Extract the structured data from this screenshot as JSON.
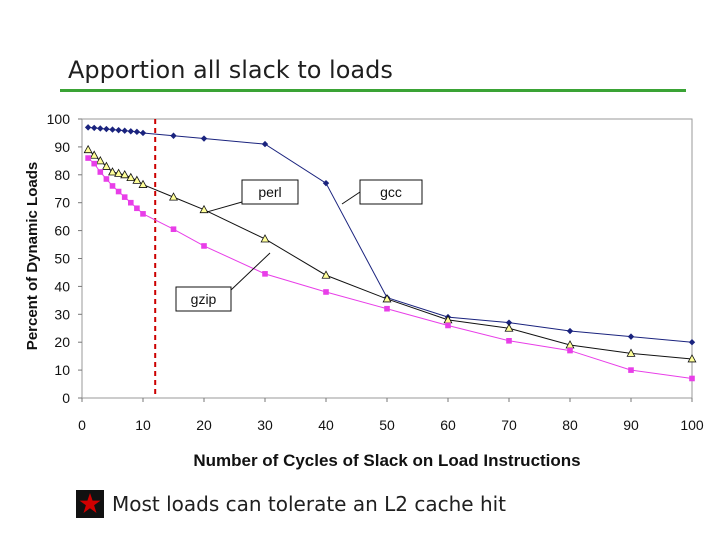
{
  "slide": {
    "title": "Apportion all slack to loads",
    "bullet": "Most loads can tolerate an L2 cache hit",
    "bullet_icon": "star-icon",
    "accent_color": "#3aa335"
  },
  "chart_data": {
    "type": "line",
    "title": "",
    "xlabel": "Number of Cycles of Slack on Load Instructions",
    "ylabel": "Percent of Dynamic Loads",
    "xlim": [
      0,
      100
    ],
    "ylim": [
      0,
      100
    ],
    "xticks": [
      0,
      10,
      20,
      30,
      40,
      50,
      60,
      70,
      80,
      90,
      100
    ],
    "yticks": [
      0,
      10,
      20,
      30,
      40,
      50,
      60,
      70,
      80,
      90,
      100
    ],
    "grid": false,
    "reference_line": {
      "x": 12,
      "style": "dashed",
      "color": "#cc0000"
    },
    "series": [
      {
        "name": "gcc",
        "color": "#1a237e",
        "marker": "diamond",
        "x": [
          1,
          2,
          3,
          4,
          5,
          6,
          7,
          8,
          9,
          10,
          15,
          20,
          30,
          40,
          50,
          60,
          70,
          80,
          90,
          100
        ],
        "values": [
          97,
          96.8,
          96.6,
          96.4,
          96.2,
          96,
          95.8,
          95.6,
          95.4,
          95,
          94,
          93,
          91,
          77,
          36,
          29,
          27,
          24,
          22,
          20
        ]
      },
      {
        "name": "perl",
        "color": "#111111",
        "marker": "triangle",
        "x": [
          1,
          2,
          3,
          4,
          5,
          6,
          7,
          8,
          9,
          10,
          15,
          20,
          30,
          40,
          50,
          60,
          70,
          80,
          90,
          100
        ],
        "values": [
          89,
          87,
          85,
          83,
          81,
          80.5,
          80,
          79,
          78,
          76.5,
          72,
          67.5,
          57,
          44,
          35.5,
          28,
          25,
          19,
          16,
          14
        ]
      },
      {
        "name": "gzip",
        "color": "#e83ee8",
        "marker": "square",
        "x": [
          1,
          2,
          3,
          4,
          5,
          6,
          7,
          8,
          9,
          10,
          15,
          20,
          30,
          40,
          50,
          60,
          70,
          80,
          90,
          100
        ],
        "values": [
          86,
          84,
          81,
          78.5,
          76,
          74,
          72,
          70,
          68,
          66,
          60.5,
          54.5,
          44.5,
          38,
          32,
          26,
          20.5,
          17,
          10,
          7
        ]
      }
    ],
    "callouts": [
      {
        "series": "perl",
        "text": "perl"
      },
      {
        "series": "gcc",
        "text": "gcc"
      },
      {
        "series": "gzip",
        "text": "gzip"
      }
    ]
  }
}
